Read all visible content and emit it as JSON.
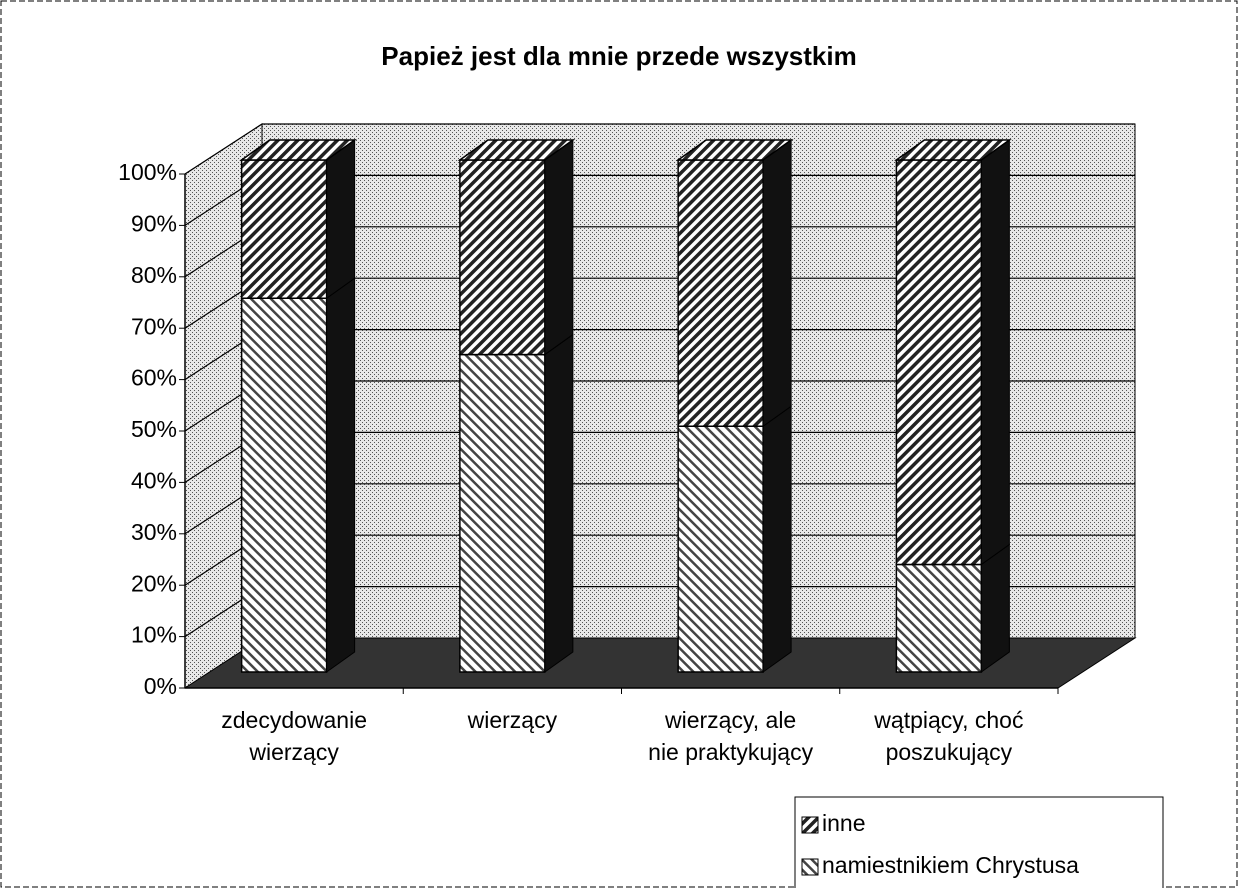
{
  "chart_data": {
    "type": "bar3d_stacked",
    "title": "Papież jest dla mnie przede wszystkim",
    "categories": [
      [
        "zdecydowanie",
        "wierzący"
      ],
      [
        "wierzący"
      ],
      [
        "wierzący, ale",
        "nie praktykujący"
      ],
      [
        "wątpiący, choć",
        "poszukujący"
      ]
    ],
    "series": [
      {
        "name": "inne",
        "color": "#222222",
        "values": [
          27,
          38,
          52,
          79
        ]
      },
      {
        "name": "namiestnikiem Chrystusa",
        "color": "#444444",
        "values": [
          73,
          62,
          48,
          21
        ]
      }
    ],
    "stack_order": [
      "namiestnikiem Chrystusa",
      "inne"
    ],
    "ylim": [
      0,
      100
    ],
    "yticks": [
      {
        "value": 0,
        "label": "0%"
      },
      {
        "value": 10,
        "label": "10%"
      },
      {
        "value": 20,
        "label": "20%"
      },
      {
        "value": 30,
        "label": "30%"
      },
      {
        "value": 40,
        "label": "40%"
      },
      {
        "value": 50,
        "label": "50%"
      },
      {
        "value": 60,
        "label": "60%"
      },
      {
        "value": 70,
        "label": "70%"
      },
      {
        "value": 80,
        "label": "80%"
      },
      {
        "value": 90,
        "label": "90%"
      },
      {
        "value": 100,
        "label": "100%"
      }
    ],
    "grid": true,
    "legend": "bottom-right"
  }
}
